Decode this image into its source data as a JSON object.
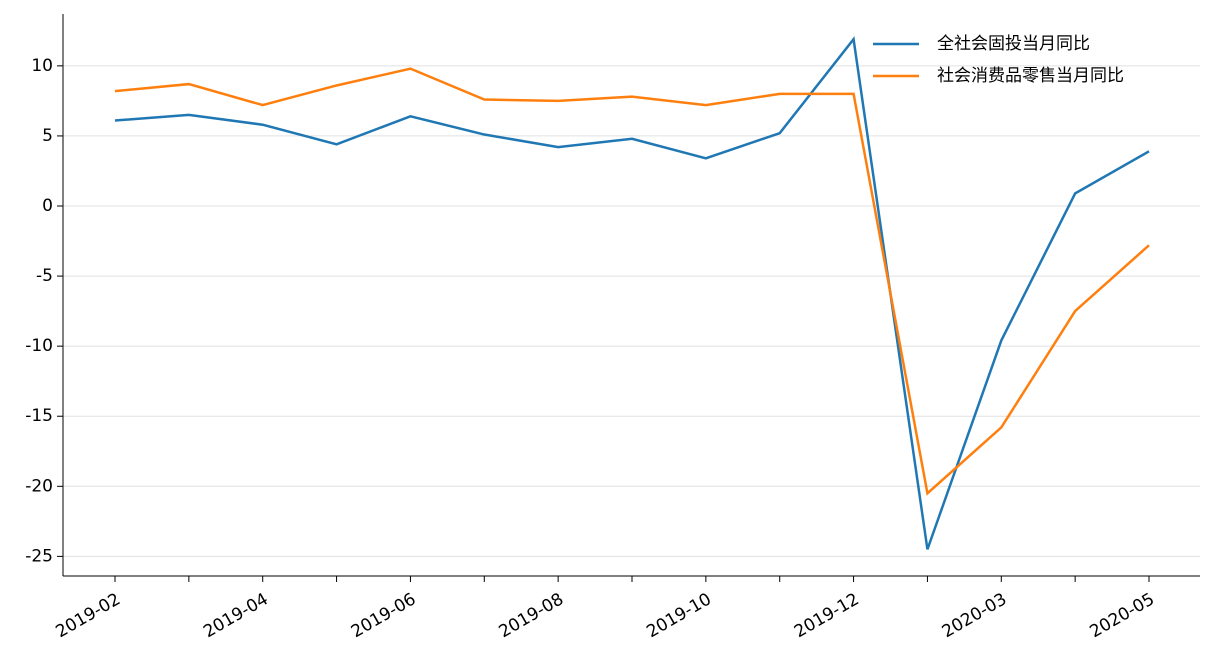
{
  "chart_data": {
    "type": "line",
    "categories": [
      "2019-02",
      null,
      "2019-04",
      null,
      "2019-06",
      null,
      "2019-08",
      null,
      "2019-10",
      null,
      "2019-12",
      null,
      "2020-03",
      null,
      "2020-05"
    ],
    "series": [
      {
        "name": "全社会固投当月同比",
        "color": "#1f77b4",
        "values": [
          6.1,
          6.5,
          5.8,
          4.4,
          6.4,
          5.1,
          4.2,
          4.8,
          3.4,
          5.2,
          11.9,
          -24.5,
          -9.6,
          0.9,
          3.9
        ]
      },
      {
        "name": "社会消费品零售当月同比",
        "color": "#ff7f0e",
        "values": [
          8.2,
          8.7,
          7.2,
          8.6,
          9.8,
          7.6,
          7.5,
          7.8,
          7.2,
          8.0,
          8.0,
          -20.5,
          -15.8,
          -7.5,
          -2.8
        ]
      }
    ],
    "ylim": [
      -26.4,
      13.7
    ],
    "yticks": [
      -25,
      -20,
      -15,
      -10,
      -5,
      0,
      5,
      10
    ],
    "grid": true,
    "legend": "upper right"
  }
}
